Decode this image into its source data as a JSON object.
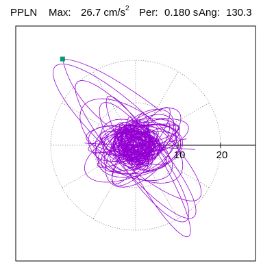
{
  "header": {
    "station": "PPLN",
    "max_label": "Max:",
    "max_value": "26.7 cm/s",
    "max_exponent": "2",
    "per_label": "Per:",
    "per_value": "0.180 s",
    "ang_label": "Ang:",
    "ang_value": "130.3"
  },
  "colors": {
    "trace": "#9400D3",
    "marker": "#009E73",
    "axis": "#000000",
    "grid": "#808080"
  },
  "chart_data": {
    "type": "polar particle motion",
    "title": "PPLN Max: 26.7 cm/s2 Per: 0.180 s Ang: 130.3",
    "rings": [
      10,
      20
    ],
    "ring_tick_labels": [
      "10",
      "20"
    ],
    "spoke_step_deg": 30,
    "grid": "dotted",
    "max_amplitude": 26.7,
    "max_angle_deg": 130.3,
    "period_s": 0.18,
    "peak_point": {
      "x": -17.2,
      "y": 20.3
    }
  }
}
